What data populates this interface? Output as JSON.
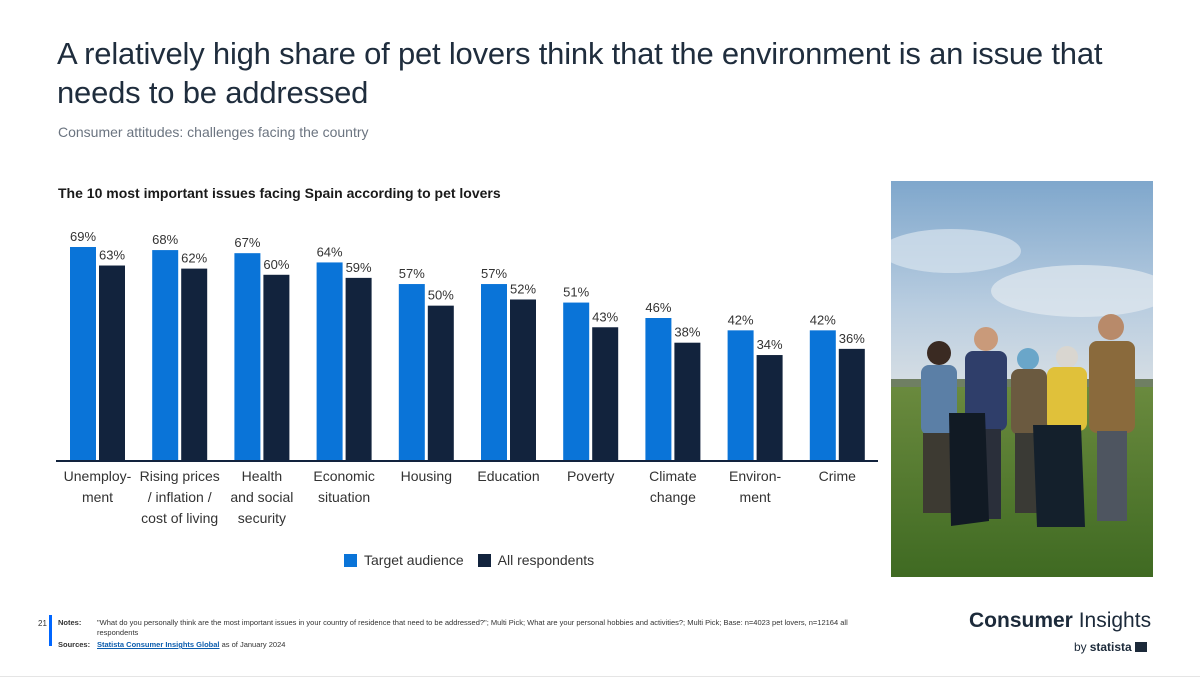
{
  "header": {
    "title": "A relatively high share of pet lovers think that the environment is an issue that needs to be addressed",
    "subtitle": "Consumer attitudes: challenges facing the country"
  },
  "chart_data": {
    "type": "bar",
    "title": "The 10 most important issues facing Spain according to pet lovers",
    "categories": [
      [
        "Unemploy-",
        "ment"
      ],
      [
        "Rising prices",
        "/ inflation /",
        "cost of living"
      ],
      [
        "Health",
        "and social",
        "security"
      ],
      [
        "Economic",
        "situation"
      ],
      [
        "Housing"
      ],
      [
        "Education"
      ],
      [
        "Poverty"
      ],
      [
        "Climate",
        "change"
      ],
      [
        "Environ-",
        "ment"
      ],
      [
        "Crime"
      ]
    ],
    "series": [
      {
        "name": "Target audience",
        "color": "#0a74d8",
        "values": [
          69,
          68,
          67,
          64,
          57,
          57,
          51,
          46,
          42,
          42
        ]
      },
      {
        "name": "All respondents",
        "color": "#12233d",
        "values": [
          63,
          62,
          60,
          59,
          50,
          52,
          43,
          38,
          34,
          36
        ]
      }
    ],
    "value_suffix": "%",
    "ylim": [
      0,
      69
    ],
    "legend_position": "bottom",
    "grid": false
  },
  "legend": {
    "target": "Target audience",
    "all": "All respondents",
    "target_color": "#0a74d8",
    "all_color": "#12233d"
  },
  "footer": {
    "page_number": "21",
    "notes_label": "Notes:",
    "notes_text": "\"What do you personally think are the most important issues in your country of residence that need to be addressed?\"; Multi Pick; What are your personal hobbies and activities?; Multi Pick; Base: n=4023 pet lovers, n=12164 all respondents",
    "sources_label": "Sources:",
    "sources_link": "Statista Consumer Insights Global",
    "sources_suffix": " as of January 2024",
    "brand_main_1": "Consumer",
    "brand_main_2": " Insights",
    "brand_by": "by",
    "brand_statista": "statista"
  }
}
